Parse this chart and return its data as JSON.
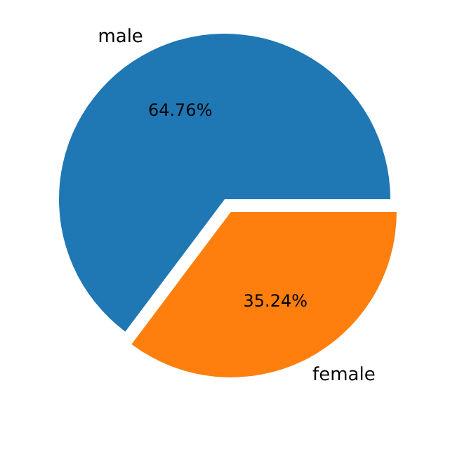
{
  "chart_data": {
    "type": "pie",
    "categories": [
      "male",
      "female"
    ],
    "values": [
      64.76,
      35.24
    ],
    "value_labels": [
      "64.76%",
      "35.24%"
    ],
    "colors": [
      "#1f77b4",
      "#ff7f0e"
    ]
  }
}
